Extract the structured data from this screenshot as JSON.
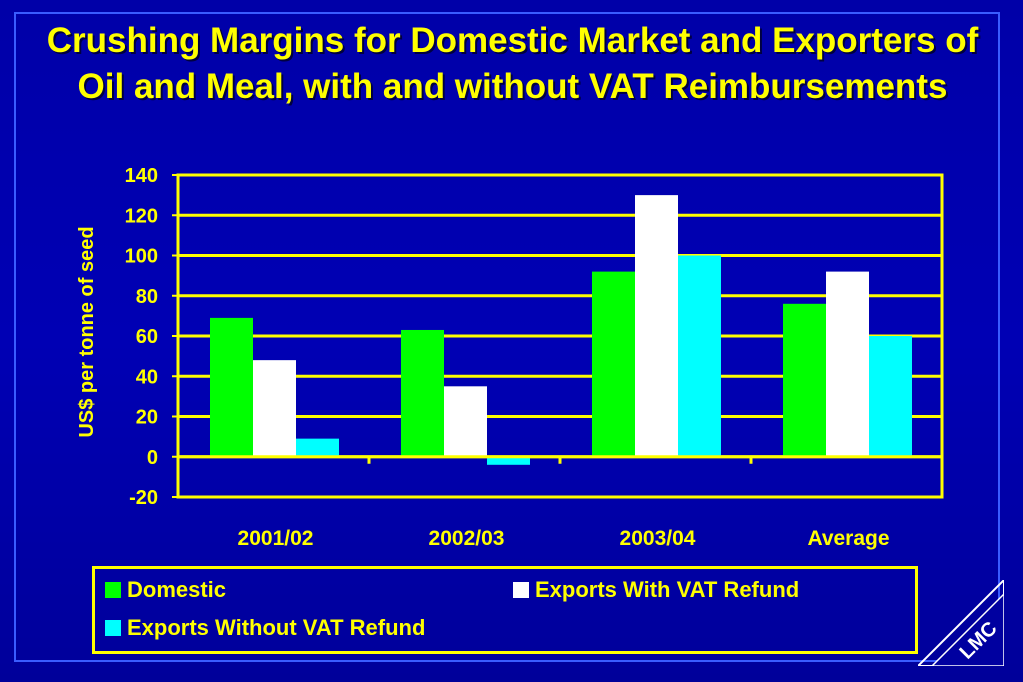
{
  "title": "Crushing Margins for Domestic Market and Exporters of Oil and Meal, with and without VAT Reimbursements",
  "logo_text": "LMC",
  "colors": {
    "background": "#0000b0",
    "accent": "#ffff00",
    "domestic": "#00ff00",
    "exports_with_vat": "#ffffff",
    "exports_without_vat": "#00ffff"
  },
  "chart_data": {
    "type": "bar",
    "title": "Crushing Margins for Domestic Market and Exporters of Oil and Meal, with and without VAT Reimbursements",
    "xlabel": "",
    "ylabel": "US$ per tonne of seed",
    "ylim": [
      -20,
      140
    ],
    "yticks": [
      140,
      120,
      100,
      80,
      60,
      40,
      20,
      0,
      -20
    ],
    "grid": true,
    "legend_position": "bottom",
    "categories": [
      "2001/02",
      "2002/03",
      "2003/04",
      "Average"
    ],
    "series": [
      {
        "name": "Domestic",
        "color": "#00ff00",
        "values": [
          69,
          63,
          92,
          76
        ]
      },
      {
        "name": "Exports With VAT Refund",
        "color": "#ffffff",
        "values": [
          48,
          35,
          130,
          92
        ]
      },
      {
        "name": "Exports Without VAT Refund",
        "color": "#00ffff",
        "values": [
          9,
          -4,
          100,
          60
        ]
      }
    ]
  }
}
